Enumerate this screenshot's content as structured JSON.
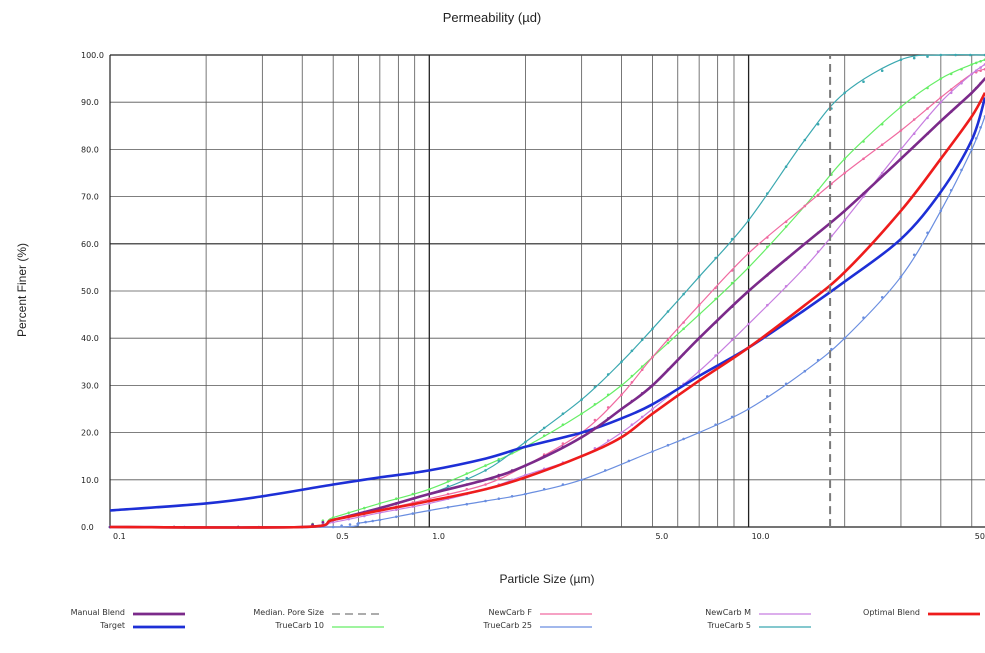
{
  "chart_data": {
    "type": "line",
    "title": "Permeability (µd)",
    "xlabel": "Particle Size (µm)",
    "ylabel": "Percent Finer (%)",
    "x_scale": "log",
    "xlim": [
      0.1,
      55
    ],
    "ylim": [
      0,
      100
    ],
    "grid": true,
    "y_ticks": [
      "0.0",
      "10.0",
      "20.0",
      "30.0",
      "40.0",
      "50.0",
      "60.0",
      "70.0",
      "80.0",
      "90.0",
      "100.0"
    ],
    "x_tick_labels": [
      {
        "x": 0.1,
        "label": "0.1"
      },
      {
        "x": 0.5,
        "label": "0.5"
      },
      {
        "x": 1.0,
        "label": "1.0"
      },
      {
        "x": 5.0,
        "label": "5.0"
      },
      {
        "x": 10.0,
        "label": "10.0"
      },
      {
        "x": 50.0,
        "label": "50.0"
      }
    ],
    "x_minor_grid": [
      0.2,
      0.3,
      0.4,
      0.5,
      0.6,
      0.7,
      0.8,
      0.9,
      1,
      2,
      3,
      4,
      5,
      6,
      7,
      8,
      9,
      10,
      20,
      30,
      40,
      50
    ],
    "x_major_grid": [
      1,
      10
    ],
    "legend_placement": "bottom",
    "median_pore_size": 18,
    "series": [
      {
        "name": "Manual Blend",
        "color": "#7b2a8a",
        "width": 2.6,
        "dash": "",
        "markers": true,
        "x": [
          0.1,
          0.4,
          0.5,
          0.7,
          1,
          1.5,
          2,
          3,
          4,
          5,
          7,
          10,
          15,
          20,
          30,
          40,
          50,
          55
        ],
        "y": [
          0,
          0,
          1.5,
          4,
          7,
          10,
          13,
          19,
          25,
          30,
          40,
          50,
          60,
          67,
          78,
          86,
          92,
          95
        ]
      },
      {
        "name": "Target",
        "color": "#1d2fd6",
        "width": 2.6,
        "dash": "",
        "markers": false,
        "x": [
          0.1,
          0.2,
          0.3,
          0.5,
          0.7,
          1,
          1.5,
          2,
          3,
          4,
          5,
          7,
          10,
          15,
          20,
          30,
          40,
          50,
          55
        ],
        "y": [
          3.5,
          5,
          6.5,
          9,
          10.5,
          12,
          14.5,
          17,
          20,
          23,
          26,
          32,
          38,
          46,
          52,
          61,
          71,
          82,
          91
        ]
      },
      {
        "name": "Median. Pore Size",
        "color": "#7a7a7a",
        "width": 2,
        "dash": "8,5",
        "markers": false,
        "x": [
          18,
          18
        ],
        "y": [
          0,
          100
        ]
      },
      {
        "name": "TrueCarb 10",
        "color": "#66ee66",
        "width": 1.2,
        "dash": "",
        "markers": true,
        "x": [
          0.1,
          0.4,
          0.5,
          0.7,
          1,
          1.5,
          2,
          3,
          4,
          5,
          7,
          10,
          15,
          20,
          30,
          40,
          50,
          55
        ],
        "y": [
          0,
          0,
          2,
          5,
          8,
          13,
          17,
          24,
          30,
          36,
          45,
          55,
          68,
          78,
          89,
          95,
          98,
          99
        ]
      },
      {
        "name": "NewCarb F",
        "color": "#f06aa0",
        "width": 1.2,
        "dash": "",
        "markers": true,
        "x": [
          0.1,
          0.4,
          0.5,
          0.7,
          1,
          1.5,
          2,
          3,
          4,
          5,
          7,
          10,
          15,
          20,
          30,
          40,
          50,
          55
        ],
        "y": [
          0,
          0,
          1.5,
          3.5,
          6,
          9,
          13,
          20,
          28,
          36,
          47,
          58,
          68,
          75,
          84,
          91,
          96,
          97
        ]
      },
      {
        "name": "TrueCarb 25",
        "color": "#6a8ee0",
        "width": 1.2,
        "dash": "",
        "markers": true,
        "x": [
          0.1,
          0.5,
          0.6,
          0.7,
          1,
          1.5,
          2,
          3,
          5,
          7,
          10,
          15,
          20,
          30,
          40,
          50,
          55
        ],
        "y": [
          0,
          0,
          0.8,
          1.5,
          3.5,
          5.5,
          7,
          10,
          16,
          20,
          25,
          33,
          40,
          53,
          67,
          80,
          87
        ]
      },
      {
        "name": "NewCarb M",
        "color": "#c77ee0",
        "width": 1.2,
        "dash": "",
        "markers": true,
        "x": [
          0.1,
          0.4,
          0.5,
          0.7,
          1,
          1.5,
          2,
          3,
          4,
          5,
          7,
          10,
          15,
          20,
          30,
          40,
          50,
          55
        ],
        "y": [
          0,
          0,
          1,
          3,
          5,
          8,
          11,
          15,
          20,
          25,
          33,
          43,
          55,
          65,
          80,
          90,
          96,
          98
        ]
      },
      {
        "name": "TrueCarb 5",
        "color": "#3aa8b0",
        "width": 1.2,
        "dash": "",
        "markers": true,
        "x": [
          0.1,
          0.4,
          0.5,
          0.7,
          1,
          1.5,
          2,
          3,
          4,
          5,
          7,
          10,
          15,
          20,
          30,
          40,
          55
        ],
        "y": [
          0,
          0,
          1.5,
          4,
          7,
          12,
          18,
          27,
          35,
          42,
          53,
          65,
          82,
          92,
          99,
          100,
          100
        ]
      },
      {
        "name": "Optimal Blend",
        "color": "#ee1c1c",
        "width": 2.6,
        "dash": "",
        "markers": false,
        "x": [
          0.1,
          0.4,
          0.5,
          0.7,
          1,
          1.5,
          2,
          3,
          4,
          5,
          7,
          10,
          15,
          20,
          30,
          40,
          50,
          55
        ],
        "y": [
          0,
          0,
          1.5,
          3.5,
          5.5,
          8,
          10.5,
          15,
          19,
          24,
          31,
          38,
          47,
          54,
          67,
          78,
          87,
          92
        ]
      }
    ]
  }
}
